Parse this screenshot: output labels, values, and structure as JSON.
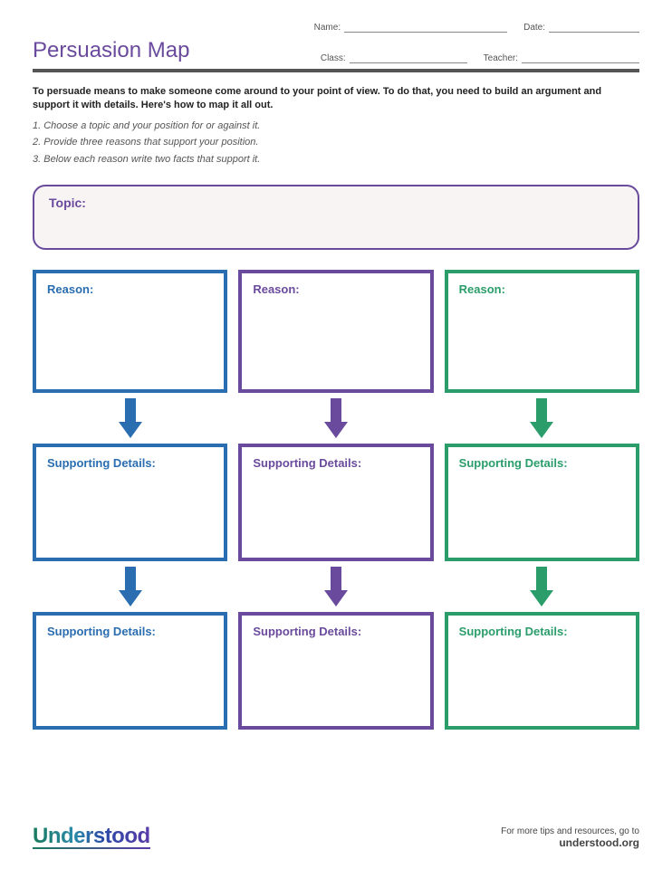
{
  "colors": {
    "purple": "#6a4a9c",
    "blue": "#2a6db0",
    "green": "#2a9d6a",
    "topic_border": "#6a4a9c",
    "topic_bg": "#f7f4f3"
  },
  "header": {
    "name_label": "Name:",
    "date_label": "Date:",
    "class_label": "Class:",
    "teacher_label": "Teacher:"
  },
  "title": "Persuasion Map",
  "intro": "To persuade means to make someone come around to your point of view. To do that, you need to build an argument and support it with details. Here's how to map it all out.",
  "steps": [
    "1. Choose a topic and your position for or against it.",
    "2. Provide three reasons that support your position.",
    "3. Below each reason write two facts that support it."
  ],
  "topic_label": "Topic:",
  "columns": [
    {
      "color": "#2a6db0",
      "reason_label": "Reason:",
      "detail_label": "Supporting Details:"
    },
    {
      "color": "#6a4a9c",
      "reason_label": "Reason:",
      "detail_label": "Supporting Details:"
    },
    {
      "color": "#2a9d6a",
      "reason_label": "Reason:",
      "detail_label": "Supporting Details:"
    }
  ],
  "arrow": {
    "width": 26,
    "height": 44,
    "shaft_width": 12,
    "head_width": 26
  },
  "footer": {
    "logo": "Understood",
    "tagline": "For more tips and resources, go to",
    "url": "understood.org"
  }
}
